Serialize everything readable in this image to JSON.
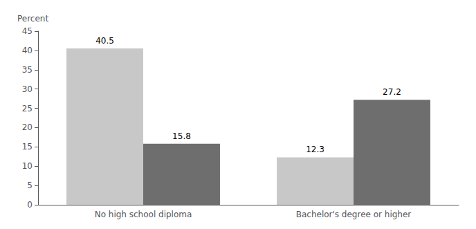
{
  "chart_data": {
    "type": "bar",
    "categories": [
      "No high school diploma",
      "Bachelor's degree or higher"
    ],
    "series": [
      {
        "color": "#c8c8c8",
        "values": [
          40.5,
          12.3
        ]
      },
      {
        "color": "#6e6e6e",
        "values": [
          15.8,
          27.2
        ]
      }
    ],
    "ylabel": "Percent",
    "ylim": [
      0,
      45
    ],
    "yticks": [
      0,
      5,
      10,
      15,
      20,
      25,
      30,
      35,
      40,
      45
    ],
    "data_labels": true,
    "grid": false
  }
}
